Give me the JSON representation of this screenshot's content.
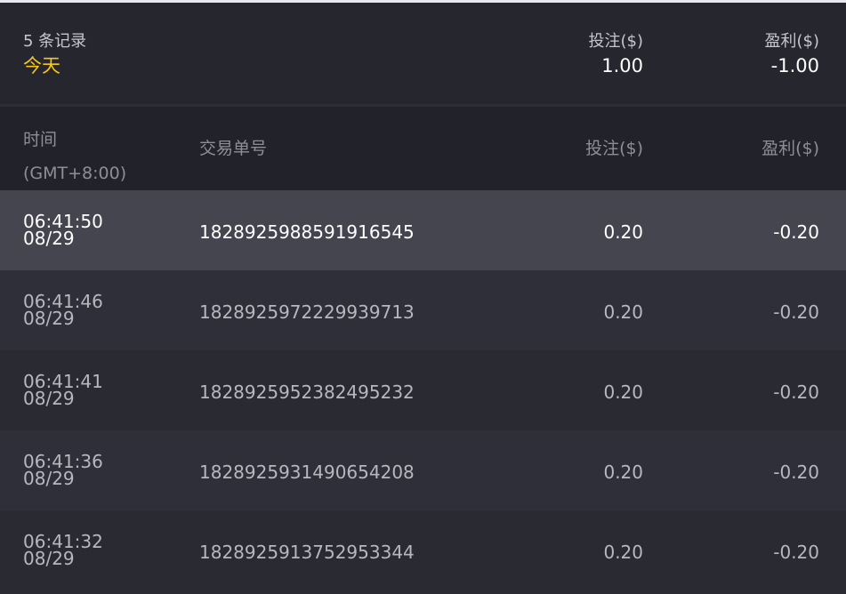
{
  "summary": {
    "count": "5 条记录",
    "date": "今天",
    "bet_label": "投注($)",
    "bet_total": "1.00",
    "pl_label": "盈利($)",
    "pl_total": "-1.00"
  },
  "colors": {
    "date_accent": "#f5c518",
    "selected_row": "#45454f"
  },
  "table": {
    "headers": {
      "time": "时间",
      "timezone": "(GMT+8:00)",
      "id": "交易单号",
      "bet": "投注($)",
      "pl": "盈利($)"
    },
    "rows": [
      {
        "time": "06:41:50",
        "date": "08/29",
        "id": "1828925988591916545",
        "bet": "0.20",
        "pl": "-0.20"
      },
      {
        "time": "06:41:46",
        "date": "08/29",
        "id": "1828925972229939713",
        "bet": "0.20",
        "pl": "-0.20"
      },
      {
        "time": "06:41:41",
        "date": "08/29",
        "id": "1828925952382495232",
        "bet": "0.20",
        "pl": "-0.20"
      },
      {
        "time": "06:41:36",
        "date": "08/29",
        "id": "1828925931490654208",
        "bet": "0.20",
        "pl": "-0.20"
      },
      {
        "time": "06:41:32",
        "date": "08/29",
        "id": "1828925913752953344",
        "bet": "0.20",
        "pl": "-0.20"
      }
    ]
  }
}
